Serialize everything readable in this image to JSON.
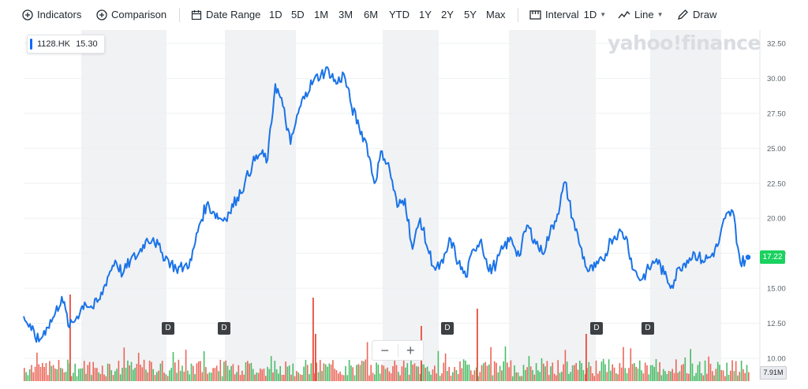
{
  "toolbar": {
    "indicators_label": "Indicators",
    "comparison_label": "Comparison",
    "date_range_label": "Date Range",
    "ranges": [
      "1D",
      "5D",
      "1M",
      "3M",
      "6M",
      "YTD",
      "1Y",
      "2Y",
      "5Y",
      "Max"
    ],
    "interval_label": "Interval",
    "interval_value": "1D",
    "charttype_label": "Line",
    "draw_label": "Draw"
  },
  "ticker_badge": {
    "symbol": "1128.HK",
    "value": "15.30"
  },
  "logo_text": "yahoo!finance",
  "last_price_label": "17.22",
  "volume_label": "7.91M",
  "zoom": {
    "minus": "−",
    "plus": "+"
  },
  "dividend_label": "D",
  "colors": {
    "line": "#1a73e8",
    "band": "#f1f2f4",
    "vol_up": "#2bb24c",
    "vol_down": "#e74c3c",
    "price_tag": "#1ad25f"
  },
  "chart_data": {
    "type": "line",
    "series": [
      {
        "name": "1128.HK",
        "values": [
          13.0,
          12.0,
          11.2,
          12.2,
          13.0,
          14.4,
          12.2,
          13.0,
          14.0,
          13.6,
          14.2,
          15.8,
          17.0,
          16.0,
          17.0,
          17.4,
          18.4,
          18.6,
          17.6,
          17.0,
          16.4,
          16.5,
          17.0,
          19.5,
          21.0,
          20.4,
          19.9,
          20.4,
          21.5,
          22.5,
          23.9,
          24.6,
          24.2,
          29.6,
          28.0,
          25.3,
          27.5,
          29.0,
          29.8,
          30.3,
          30.6,
          29.6,
          30.3,
          28.0,
          26.5,
          25.3,
          22.5,
          24.8,
          23.5,
          20.8,
          21.4,
          17.8,
          20.0,
          17.8,
          16.3,
          16.8,
          18.5,
          16.8,
          15.8,
          17.8,
          18.5,
          16.2,
          16.8,
          18.0,
          18.5,
          17.3,
          19.5,
          18.5,
          17.5,
          18.9,
          20.3,
          22.6,
          20.0,
          18.0,
          16.2,
          16.5,
          17.0,
          18.5,
          19.0,
          18.7,
          16.3,
          15.6,
          16.4,
          17.1,
          16.0,
          15.2,
          16.5,
          17.0,
          17.5,
          17.0,
          17.2,
          18.0,
          20.0,
          20.5,
          16.8,
          17.2
        ],
        "color": "#1a73e8"
      }
    ],
    "y_ticks": [
      "32.50",
      "30.00",
      "27.50",
      "25.00",
      "22.50",
      "20.00",
      "17.50",
      "15.00",
      "12.50",
      "10.00"
    ],
    "ylim": [
      10.0,
      32.5
    ],
    "marker_value": 17.22,
    "dividend_markers": 6,
    "volume_bars": 400,
    "shaded_bands": 5,
    "grid": "horizontal"
  }
}
